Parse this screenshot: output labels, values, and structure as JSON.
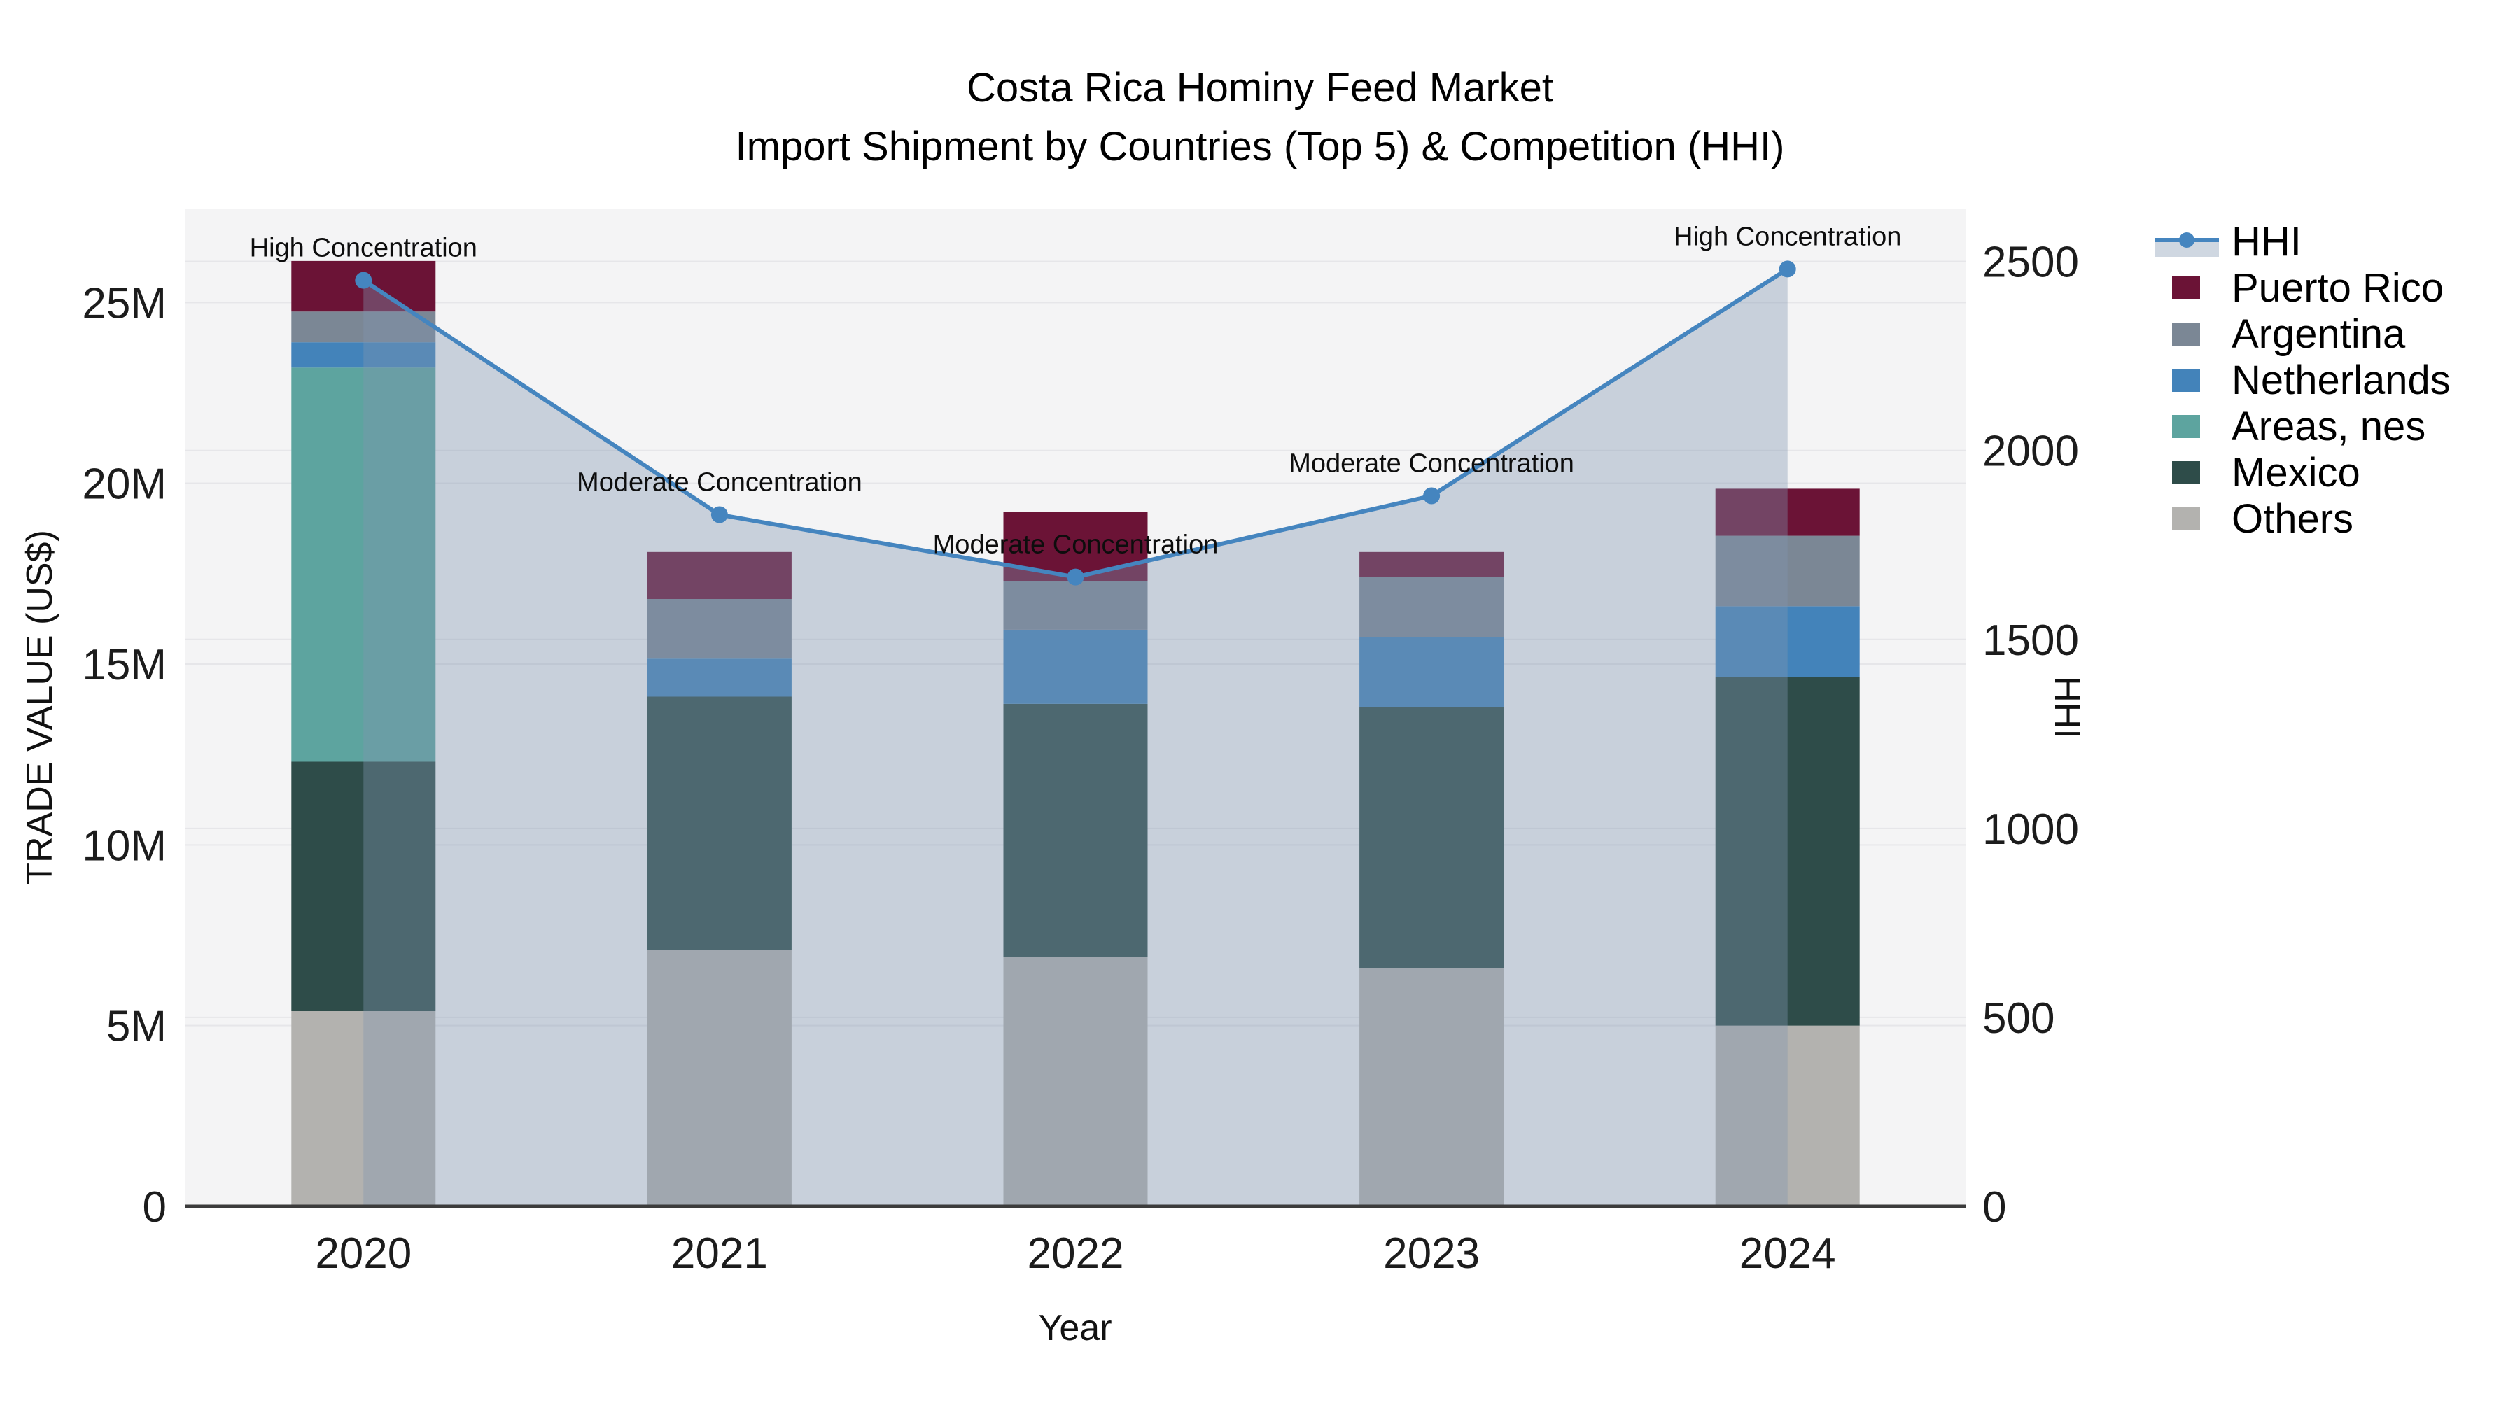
{
  "title": {
    "line1": "Costa Rica Hominy Feed Market",
    "line2": "Import Shipment by Countries (Top 5) & Competition (HHI)"
  },
  "axes": {
    "x_title": "Year",
    "y_left_title": "TRADE VALUE (US$)",
    "y_right_title": "HHI",
    "y_left_tick_labels": [
      "0",
      "5M",
      "10M",
      "15M",
      "20M",
      "25M"
    ],
    "y_left_tick_values": [
      0,
      5,
      10,
      15,
      20,
      25
    ],
    "y_right_tick_labels": [
      "0",
      "500",
      "1000",
      "1500",
      "2000",
      "2500"
    ],
    "y_right_tick_values": [
      0,
      500,
      1000,
      1500,
      2000,
      2500
    ]
  },
  "colors": {
    "plot_background": "#f4f4f5",
    "gridline": "#e6e6e9",
    "axis_spine": "#3c3c3c",
    "tick_text": "#1c1c1c",
    "annotation_text": "#0d0d0d",
    "hhi_line": "#4585bf",
    "hhi_area_fill": "rgba(130,150,175,0.38)"
  },
  "chart_data": {
    "type": "combo_stacked_bar_line",
    "x_categories": [
      "2020",
      "2021",
      "2022",
      "2023",
      "2024"
    ],
    "bar_unit": "million US$",
    "bar_stack_order_bottom_to_top": [
      "Others",
      "Mexico",
      "Areas, nes",
      "Netherlands",
      "Argentina",
      "Puerto Rico"
    ],
    "bar_series": [
      {
        "name": "Others",
        "color": "#b3b2af",
        "values": [
          5.4,
          7.1,
          6.9,
          6.6,
          5.0
        ]
      },
      {
        "name": "Mexico",
        "color": "#2e4c49",
        "values": [
          6.9,
          7.0,
          7.0,
          7.2,
          9.65
        ]
      },
      {
        "name": "Areas, nes",
        "color": "#5da49f",
        "values": [
          10.9,
          0,
          0,
          0,
          0
        ]
      },
      {
        "name": "Netherlands",
        "color": "#4383ba",
        "values": [
          0.7,
          1.05,
          2.05,
          1.95,
          1.95
        ]
      },
      {
        "name": "Argentina",
        "color": "#7b8795",
        "values": [
          0.85,
          1.65,
          1.35,
          1.65,
          1.95
        ]
      },
      {
        "name": "Puerto Rico",
        "color": "#6b1336",
        "values": [
          1.4,
          1.3,
          1.9,
          0.7,
          1.3
        ]
      }
    ],
    "bar_totals": [
      26.15,
      18.1,
      19.2,
      18.1,
      19.85
    ],
    "line_series": {
      "name": "HHI",
      "color": "#4585bf",
      "values": [
        2450,
        1830,
        1665,
        1880,
        2480
      ],
      "area_fill": true
    },
    "annotations": [
      {
        "x": "2020",
        "text": "High Concentration"
      },
      {
        "x": "2021",
        "text": "Moderate Concentration"
      },
      {
        "x": "2022",
        "text": "Moderate Concentration"
      },
      {
        "x": "2023",
        "text": "Moderate Concentration"
      },
      {
        "x": "2024",
        "text": "High Concentration"
      }
    ],
    "ylim_left_millions": [
      0,
      27.6
    ],
    "ylim_right_hhi": [
      0,
      2640
    ],
    "grid": true,
    "legend_position": "right"
  },
  "legend": {
    "items": [
      {
        "label": "HHI",
        "color": "#4585bf",
        "type": "line"
      },
      {
        "label": "Puerto Rico",
        "color": "#6b1336",
        "type": "swatch"
      },
      {
        "label": "Argentina",
        "color": "#7b8795",
        "type": "swatch"
      },
      {
        "label": "Netherlands",
        "color": "#4383ba",
        "type": "swatch"
      },
      {
        "label": "Areas, nes",
        "color": "#5da49f",
        "type": "swatch"
      },
      {
        "label": "Mexico",
        "color": "#2e4c49",
        "type": "swatch"
      },
      {
        "label": "Others",
        "color": "#b3b2af",
        "type": "swatch"
      }
    ]
  }
}
